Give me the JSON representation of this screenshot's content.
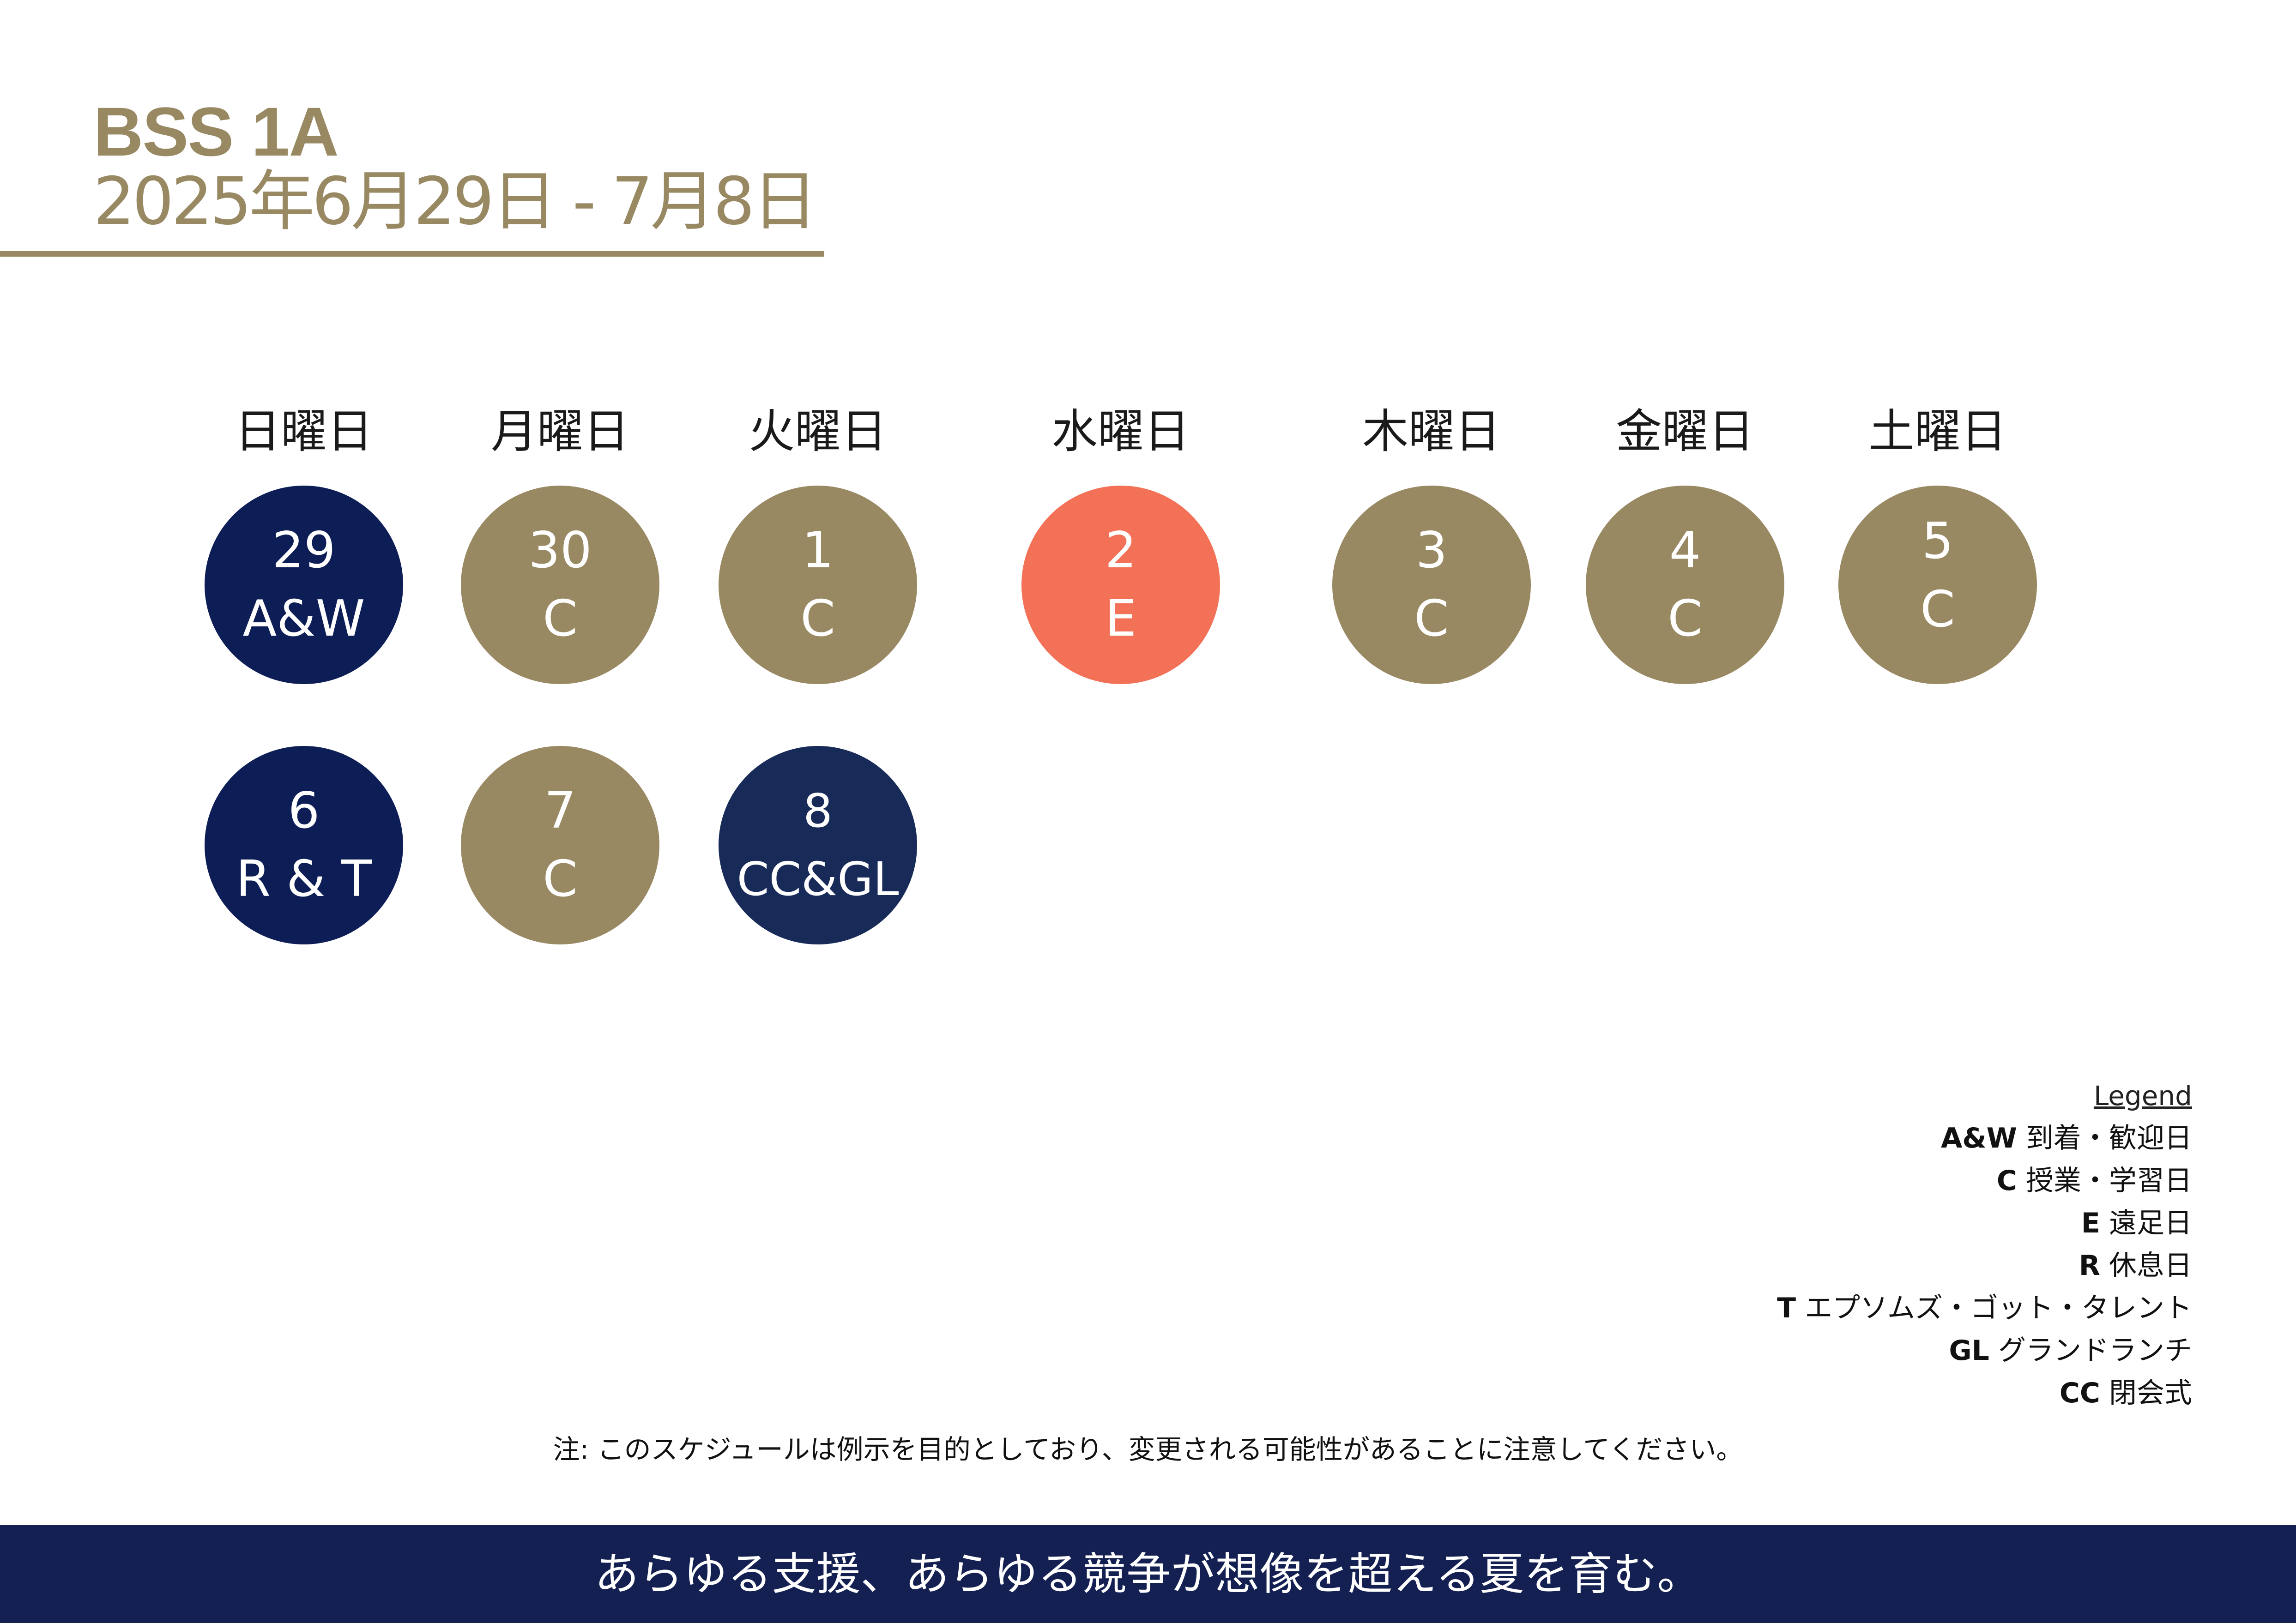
{
  "header": {
    "title": "BSS 1A",
    "dates": "2025年6月29日 - 7月8日"
  },
  "colors": {
    "gold": "#998963",
    "navy": "#0d1d56",
    "navy_alt": "#182a58",
    "coral": "#f37157",
    "footer": "#142052"
  },
  "days": [
    {
      "label": "日曜日"
    },
    {
      "label": "月曜日"
    },
    {
      "label": "火曜日"
    },
    {
      "label": "水曜日"
    },
    {
      "label": "木曜日"
    },
    {
      "label": "金曜日"
    },
    {
      "label": "土曜日"
    }
  ],
  "calendar": {
    "week1": [
      {
        "num": "29",
        "code": "A&W"
      },
      {
        "num": "30",
        "code": "C"
      },
      {
        "num": "1",
        "code": "C"
      },
      {
        "num": "2",
        "code": "E"
      },
      {
        "num": "3",
        "code": "C"
      },
      {
        "num": "4",
        "code": "C"
      },
      {
        "num": "5",
        "code": "C"
      }
    ],
    "week2": [
      {
        "num": "6",
        "code": "R & T"
      },
      {
        "num": "7",
        "code": "C"
      },
      {
        "num": "8",
        "code": "CC&GL"
      }
    ]
  },
  "legend": {
    "title": "Legend",
    "items": [
      {
        "code": "A&W",
        "text": "到着・歓迎日"
      },
      {
        "code": "C",
        "text": "授業・学習日"
      },
      {
        "code": "E",
        "text": "遠足日"
      },
      {
        "code": "R",
        "text": "休息日"
      },
      {
        "code": "T",
        "text": "エプソムズ・ゴット・タレント"
      },
      {
        "code": "GL",
        "text": "グランドランチ"
      },
      {
        "code": "CC",
        "text": "閉会式"
      }
    ]
  },
  "note": "注: このスケジュールは例示を目的としており、変更される可能性があることに注意してください。",
  "footer": {
    "tagline": "あらゆる支援、あらゆる競争が想像を超える夏を育む。"
  }
}
